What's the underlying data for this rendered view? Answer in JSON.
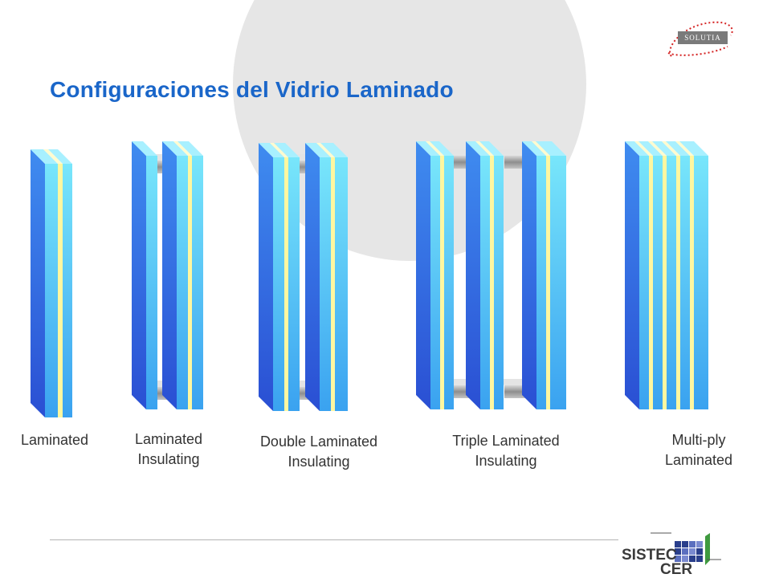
{
  "title": "Configuraciones del Vidrio Laminado",
  "brand": {
    "name": "SOLUTIA"
  },
  "footer": {
    "brand_line1": "SISTEC",
    "brand_line2": "CER"
  },
  "configurations": [
    {
      "label": "Laminated"
    },
    {
      "label": "Laminated\nInsulating"
    },
    {
      "label": "Double Laminated\nInsulating"
    },
    {
      "label": "Triple Laminated\nInsulating"
    },
    {
      "label": "Multi-ply\nLaminated"
    }
  ],
  "colors": {
    "title": "#1a66c9",
    "glass_dark": "#2f5fd8",
    "glass_light": "#5fd0f5",
    "interlayer": "#fff7a0",
    "spacer": "#8a8a8a",
    "background_circle": "#e6e6e6"
  }
}
